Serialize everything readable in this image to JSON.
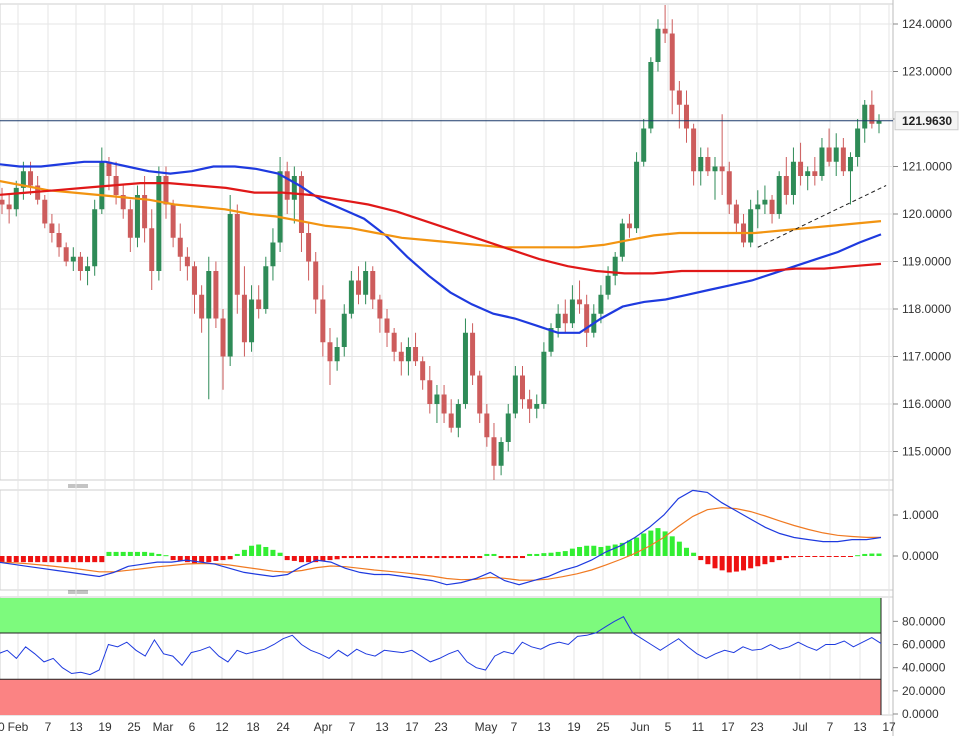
{
  "colors": {
    "background": "#ffffff",
    "grid": "#e6e6e6",
    "axis_text": "#333333",
    "bull": "#2e8b57",
    "bear": "#cd5c5c",
    "sma_short": "#1e3adf",
    "sma_mid": "#f29411",
    "sma_long": "#e01818",
    "price_line": "#1b3a6b",
    "price_tag_bg": "#f4f4f4",
    "hist_pos": "#33ee33",
    "hist_neg": "#ee1111",
    "macd_line": "#1e3adf",
    "signal_line": "#f07a22",
    "rsi_line": "#1e3adf",
    "overbought_zone": "#7dfa7d",
    "oversold_zone": "#fb8383",
    "trendline": "#222222"
  },
  "chart_data": [
    {
      "type": "candlestick",
      "name": "price",
      "y_ticks": [
        "124.0000",
        "123.0000",
        "122.0000",
        "121.0000",
        "120.0000",
        "119.0000",
        "118.0000",
        "117.0000",
        "116.0000",
        "115.0000"
      ],
      "ylim": [
        114.5,
        124.5
      ],
      "x_ticks": [
        "Feb",
        "7",
        "13",
        "19",
        "25",
        "Mar",
        "6",
        "12",
        "18",
        "24",
        "Apr",
        "7",
        "13",
        "17",
        "23",
        "May",
        "7",
        "13",
        "19",
        "25",
        "Jun",
        "5",
        "11",
        "17",
        "23",
        "Jul",
        "7",
        "13",
        "17"
      ],
      "last_price_label": "121.9630",
      "last_price": 121.963,
      "candles": [
        [
          120.3,
          120.55,
          120.0,
          120.2
        ],
        [
          120.2,
          120.4,
          119.8,
          120.1
        ],
        [
          120.1,
          120.7,
          119.95,
          120.55
        ],
        [
          120.55,
          121.1,
          120.3,
          120.9
        ],
        [
          120.9,
          121.1,
          120.4,
          120.6
        ],
        [
          120.6,
          120.8,
          120.2,
          120.3
        ],
        [
          120.3,
          120.4,
          119.7,
          119.8
        ],
        [
          119.8,
          120.0,
          119.4,
          119.6
        ],
        [
          119.6,
          119.8,
          119.1,
          119.3
        ],
        [
          119.3,
          119.4,
          118.9,
          119.0
        ],
        [
          119.0,
          119.3,
          118.8,
          119.1
        ],
        [
          119.1,
          119.2,
          118.6,
          118.8
        ],
        [
          118.8,
          119.1,
          118.5,
          118.9
        ],
        [
          118.9,
          120.3,
          118.7,
          120.1
        ],
        [
          120.1,
          121.4,
          120.0,
          121.1
        ],
        [
          121.1,
          121.2,
          120.5,
          120.8
        ],
        [
          120.8,
          121.1,
          120.2,
          120.4
        ],
        [
          120.4,
          120.6,
          119.9,
          120.1
        ],
        [
          120.1,
          120.3,
          119.2,
          119.5
        ],
        [
          119.5,
          120.6,
          119.3,
          120.4
        ],
        [
          120.4,
          120.8,
          119.4,
          119.7
        ],
        [
          119.7,
          120.1,
          118.4,
          118.8
        ],
        [
          118.8,
          121.0,
          118.6,
          120.8
        ],
        [
          120.8,
          121.0,
          119.9,
          120.2
        ],
        [
          120.2,
          120.3,
          119.3,
          119.5
        ],
        [
          119.5,
          119.8,
          118.8,
          119.1
        ],
        [
          119.1,
          119.3,
          118.6,
          118.9
        ],
        [
          118.9,
          119.0,
          117.9,
          118.3
        ],
        [
          118.3,
          118.5,
          117.5,
          117.8
        ],
        [
          117.8,
          119.1,
          116.1,
          118.8
        ],
        [
          118.8,
          119.0,
          117.6,
          117.8
        ],
        [
          117.8,
          118.0,
          116.3,
          117.0
        ],
        [
          117.0,
          120.4,
          116.8,
          120.0
        ],
        [
          120.0,
          120.2,
          117.9,
          118.3
        ],
        [
          118.3,
          118.9,
          117.0,
          117.3
        ],
        [
          117.3,
          118.5,
          117.1,
          118.2
        ],
        [
          118.2,
          118.5,
          117.8,
          118.0
        ],
        [
          118.0,
          119.1,
          117.9,
          118.9
        ],
        [
          118.9,
          119.7,
          118.6,
          119.4
        ],
        [
          119.4,
          121.2,
          119.2,
          120.9
        ],
        [
          120.9,
          121.1,
          120.0,
          120.3
        ],
        [
          120.3,
          121.0,
          119.8,
          120.8
        ],
        [
          120.8,
          120.9,
          119.2,
          119.6
        ],
        [
          119.6,
          119.8,
          118.6,
          119.0
        ],
        [
          119.0,
          119.2,
          117.9,
          118.2
        ],
        [
          118.2,
          118.5,
          117.0,
          117.3
        ],
        [
          117.3,
          117.6,
          116.4,
          116.9
        ],
        [
          116.9,
          117.4,
          116.7,
          117.2
        ],
        [
          117.2,
          118.1,
          117.0,
          117.9
        ],
        [
          117.9,
          118.8,
          117.8,
          118.6
        ],
        [
          118.6,
          118.9,
          118.1,
          118.3
        ],
        [
          118.3,
          119.0,
          118.1,
          118.8
        ],
        [
          118.8,
          118.9,
          118.0,
          118.2
        ],
        [
          118.2,
          118.3,
          117.5,
          117.8
        ],
        [
          117.8,
          118.0,
          117.2,
          117.5
        ],
        [
          117.5,
          117.6,
          116.9,
          117.1
        ],
        [
          117.1,
          117.3,
          116.6,
          116.9
        ],
        [
          116.9,
          117.4,
          116.6,
          117.2
        ],
        [
          117.2,
          117.5,
          116.8,
          116.9
        ],
        [
          116.9,
          117.0,
          116.3,
          116.5
        ],
        [
          116.5,
          116.8,
          115.8,
          116.0
        ],
        [
          116.0,
          116.4,
          115.6,
          116.2
        ],
        [
          116.2,
          116.4,
          115.6,
          115.8
        ],
        [
          115.8,
          116.1,
          115.4,
          115.5
        ],
        [
          115.5,
          116.1,
          115.3,
          116.0
        ],
        [
          116.0,
          117.8,
          115.9,
          117.5
        ],
        [
          117.5,
          117.7,
          116.4,
          116.6
        ],
        [
          116.6,
          116.7,
          115.6,
          115.8
        ],
        [
          115.8,
          116.0,
          115.1,
          115.3
        ],
        [
          115.3,
          115.6,
          114.4,
          114.7
        ],
        [
          114.7,
          115.3,
          114.5,
          115.2
        ],
        [
          115.2,
          116.0,
          115.0,
          115.8
        ],
        [
          115.8,
          116.8,
          115.7,
          116.6
        ],
        [
          116.6,
          116.8,
          115.9,
          116.1
        ],
        [
          116.1,
          116.3,
          115.6,
          115.9
        ],
        [
          115.9,
          116.2,
          115.7,
          116.0
        ],
        [
          116.0,
          117.3,
          115.9,
          117.1
        ],
        [
          117.1,
          117.7,
          117.0,
          117.6
        ],
        [
          117.6,
          118.1,
          117.4,
          117.9
        ],
        [
          117.9,
          118.2,
          117.5,
          117.7
        ],
        [
          117.7,
          118.5,
          117.6,
          118.2
        ],
        [
          118.2,
          118.6,
          117.9,
          118.1
        ],
        [
          118.1,
          118.3,
          117.2,
          117.5
        ],
        [
          117.5,
          118.1,
          117.4,
          117.9
        ],
        [
          117.9,
          118.5,
          117.7,
          118.3
        ],
        [
          118.3,
          118.9,
          118.2,
          118.7
        ],
        [
          118.7,
          119.2,
          118.5,
          119.1
        ],
        [
          119.1,
          119.9,
          119.0,
          119.8
        ],
        [
          119.8,
          120.0,
          119.5,
          119.7
        ],
        [
          119.7,
          121.3,
          119.6,
          121.1
        ],
        [
          121.1,
          122.0,
          121.0,
          121.8
        ],
        [
          121.8,
          123.3,
          121.7,
          123.2
        ],
        [
          123.2,
          124.1,
          123.0,
          123.9
        ],
        [
          123.9,
          124.4,
          123.6,
          123.8
        ],
        [
          123.8,
          124.1,
          122.1,
          122.6
        ],
        [
          122.6,
          122.8,
          121.8,
          122.3
        ],
        [
          122.3,
          122.6,
          121.5,
          121.8
        ],
        [
          121.8,
          121.9,
          120.6,
          120.9
        ],
        [
          120.9,
          121.4,
          120.6,
          121.2
        ],
        [
          121.2,
          121.4,
          120.8,
          120.9
        ],
        [
          120.9,
          121.2,
          120.3,
          121.0
        ],
        [
          121.0,
          122.1,
          120.4,
          120.9
        ],
        [
          120.9,
          121.1,
          120.0,
          120.2
        ],
        [
          120.2,
          120.3,
          119.6,
          119.8
        ],
        [
          119.8,
          120.0,
          119.3,
          119.4
        ],
        [
          119.4,
          120.3,
          119.3,
          120.1
        ],
        [
          120.1,
          120.5,
          119.7,
          120.2
        ],
        [
          120.2,
          120.6,
          120.0,
          120.3
        ],
        [
          120.3,
          120.4,
          119.8,
          120.0
        ],
        [
          120.0,
          120.9,
          119.9,
          120.8
        ],
        [
          120.8,
          121.2,
          120.2,
          120.4
        ],
        [
          120.4,
          121.4,
          120.2,
          121.1
        ],
        [
          121.1,
          121.5,
          120.6,
          120.8
        ],
        [
          120.8,
          121.0,
          120.5,
          120.9
        ],
        [
          120.9,
          121.2,
          120.6,
          120.8
        ],
        [
          120.8,
          121.6,
          120.7,
          121.4
        ],
        [
          121.4,
          121.8,
          121.0,
          121.1
        ],
        [
          121.1,
          121.7,
          120.8,
          121.4
        ],
        [
          121.4,
          121.6,
          120.8,
          120.9
        ],
        [
          120.9,
          121.3,
          120.2,
          121.2
        ],
        [
          121.2,
          122.0,
          121.0,
          121.8
        ],
        [
          121.8,
          122.4,
          121.5,
          122.3
        ],
        [
          122.3,
          122.6,
          121.8,
          121.9
        ],
        [
          121.9,
          122.1,
          121.7,
          121.963
        ]
      ],
      "sma_series": [
        {
          "values": [
            121.05,
            121.0,
            121.0,
            121.05,
            121.1,
            121.1,
            121.0,
            120.9,
            120.85,
            120.9,
            121.0,
            121.0,
            120.95,
            120.85,
            120.6,
            120.3,
            120.1,
            119.9,
            119.55,
            119.1,
            118.7,
            118.35,
            118.1,
            117.9,
            117.8,
            117.65,
            117.5,
            117.5,
            117.8,
            118.05,
            118.15,
            118.2,
            118.3,
            118.4,
            118.5,
            118.6,
            118.75,
            118.9,
            119.05,
            119.2,
            119.4,
            119.57
          ]
        },
        {
          "values": [
            120.7,
            120.6,
            120.5,
            120.45,
            120.4,
            120.35,
            120.3,
            120.2,
            120.15,
            120.1,
            120.0,
            119.95,
            119.85,
            119.75,
            119.7,
            119.6,
            119.5,
            119.45,
            119.4,
            119.35,
            119.3,
            119.3,
            119.3,
            119.3,
            119.35,
            119.45,
            119.55,
            119.6,
            119.6,
            119.6,
            119.6,
            119.65,
            119.7,
            119.75,
            119.8,
            119.85
          ]
        },
        {
          "values": [
            120.4,
            120.45,
            120.5,
            120.55,
            120.6,
            120.65,
            120.65,
            120.6,
            120.55,
            120.45,
            120.45,
            120.4,
            120.3,
            120.2,
            120.05,
            119.85,
            119.65,
            119.45,
            119.25,
            119.05,
            118.9,
            118.8,
            118.75,
            118.75,
            118.8,
            118.8,
            118.8,
            118.8,
            118.85,
            118.85,
            118.9,
            118.95
          ]
        }
      ],
      "trendline": [
        [
          106,
          119.3
        ],
        [
          124,
          120.6
        ]
      ]
    },
    {
      "type": "line",
      "name": "macd",
      "y_ticks": [
        "1.0000",
        "0.0000"
      ],
      "ylim": [
        -0.8,
        1.6
      ],
      "histogram": [
        -0.15,
        -0.15,
        -0.15,
        -0.15,
        -0.15,
        -0.15,
        -0.15,
        -0.15,
        -0.15,
        -0.15,
        -0.15,
        -0.15,
        -0.15,
        -0.15,
        -0.15,
        0.1,
        0.1,
        0.1,
        0.1,
        0.1,
        0.1,
        0.08,
        0.05,
        0.02,
        -0.1,
        -0.12,
        -0.15,
        -0.18,
        -0.15,
        -0.15,
        -0.12,
        -0.1,
        -0.08,
        0.05,
        0.15,
        0.25,
        0.28,
        0.22,
        0.15,
        0.08,
        -0.1,
        -0.12,
        -0.15,
        -0.15,
        -0.15,
        -0.12,
        -0.1,
        -0.08,
        -0.05,
        -0.05,
        -0.05,
        -0.05,
        -0.05,
        -0.05,
        -0.05,
        -0.05,
        -0.05,
        -0.05,
        -0.05,
        -0.05,
        -0.05,
        -0.05,
        -0.05,
        -0.05,
        -0.05,
        -0.05,
        -0.05,
        -0.05,
        0.05,
        0.05,
        -0.05,
        -0.05,
        -0.05,
        -0.05,
        0.05,
        0.05,
        0.07,
        0.08,
        0.1,
        0.12,
        0.18,
        0.22,
        0.25,
        0.25,
        0.22,
        0.25,
        0.28,
        0.32,
        0.38,
        0.45,
        0.55,
        0.62,
        0.68,
        0.6,
        0.48,
        0.35,
        0.2,
        0.08,
        -0.1,
        -0.2,
        -0.3,
        -0.35,
        -0.4,
        -0.38,
        -0.35,
        -0.3,
        -0.25,
        -0.2,
        -0.15,
        -0.1,
        -0.05,
        -0.03,
        -0.02,
        -0.02,
        -0.02,
        -0.02,
        -0.02,
        -0.02,
        -0.02,
        -0.02,
        0.02,
        0.05,
        0.06,
        0.06
      ],
      "macd_line": [
        -0.15,
        -0.2,
        -0.25,
        -0.3,
        -0.35,
        -0.4,
        -0.45,
        -0.5,
        -0.4,
        -0.25,
        -0.2,
        -0.15,
        -0.15,
        -0.1,
        -0.15,
        -0.2,
        -0.3,
        -0.4,
        -0.45,
        -0.5,
        -0.45,
        -0.25,
        -0.1,
        -0.15,
        -0.3,
        -0.4,
        -0.45,
        -0.45,
        -0.5,
        -0.55,
        -0.6,
        -0.7,
        -0.65,
        -0.55,
        -0.4,
        -0.6,
        -0.7,
        -0.6,
        -0.5,
        -0.35,
        -0.25,
        -0.1,
        0.1,
        0.25,
        0.45,
        0.7,
        1.0,
        1.4,
        1.6,
        1.55,
        1.3,
        1.1,
        0.9,
        0.7,
        0.55,
        0.45,
        0.4,
        0.35,
        0.35,
        0.4,
        0.4,
        0.45
      ]
    },
    {
      "type": "line",
      "name": "rsi",
      "y_ticks": [
        "80.0000",
        "60.0000",
        "40.0000",
        "20.0000",
        "0.0000"
      ],
      "ylim": [
        0,
        100
      ],
      "bands": [
        70,
        30
      ],
      "rsi_line": [
        52,
        55,
        48,
        58,
        52,
        45,
        48,
        40,
        35,
        36,
        34,
        38,
        60,
        58,
        62,
        55,
        50,
        64,
        52,
        50,
        42,
        53,
        55,
        58,
        50,
        45,
        55,
        52,
        54,
        56,
        60,
        65,
        68,
        60,
        55,
        52,
        48,
        55,
        50,
        56,
        52,
        50,
        55,
        54,
        53,
        55,
        50,
        45,
        48,
        52,
        55,
        45,
        40,
        38,
        50,
        54,
        52,
        62,
        58,
        56,
        60,
        62,
        60,
        67,
        68,
        70,
        75,
        80,
        84,
        70,
        65,
        60,
        55,
        60,
        65,
        58,
        52,
        48,
        52,
        55,
        53,
        58,
        55,
        56,
        60,
        56,
        58,
        62,
        58,
        55,
        60,
        60,
        63,
        58,
        62,
        66,
        61
      ]
    }
  ]
}
